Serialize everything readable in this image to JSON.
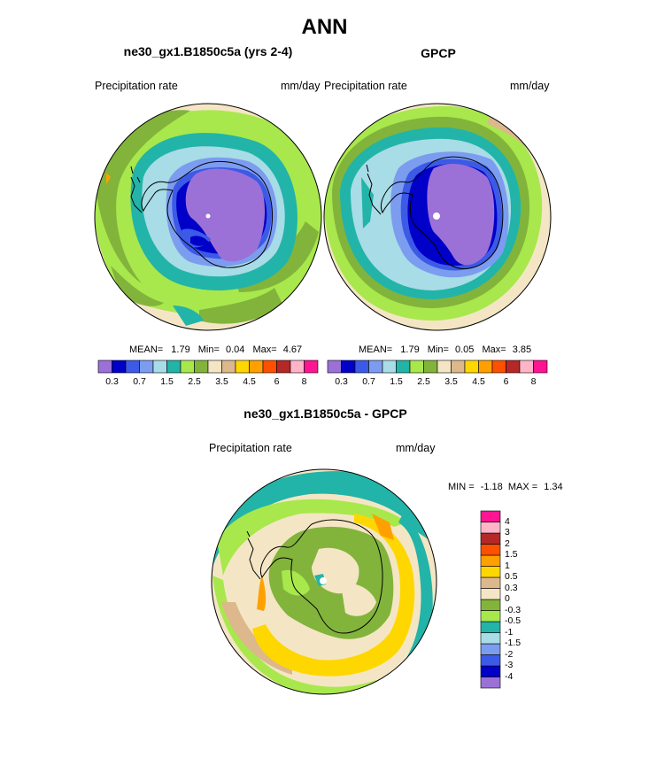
{
  "title": "ANN",
  "panels": [
    {
      "title": "ne30_gx1.B1850c5a (yrs 2-4)",
      "variable": "Precipitation rate",
      "units": "mm/day",
      "stats": {
        "mean_label": "MEAN=",
        "mean": "1.79",
        "min_label": "Min=",
        "min": "0.04",
        "max_label": "Max=",
        "max": "4.67"
      }
    },
    {
      "title": "GPCP",
      "variable": "Precipitation rate",
      "units": "mm/day",
      "stats": {
        "mean_label": "MEAN=",
        "mean": "1.79",
        "min_label": "Min=",
        "min": "0.05",
        "max_label": "Max=",
        "max": "3.85"
      }
    },
    {
      "title": "ne30_gx1.B1850c5a - GPCP",
      "variable": "Precipitation rate",
      "units": "mm/day",
      "stats": {
        "min_label": "MIN =",
        "min": "-1.18",
        "max_label": "MAX =",
        "max": "1.34"
      }
    }
  ],
  "colorbar_precip": {
    "colors": [
      "#9b71d8",
      "#0000c8",
      "#3c5ae6",
      "#7c9cf0",
      "#a8dce6",
      "#22b4a8",
      "#a8e84c",
      "#82b43c",
      "#f4e6c4",
      "#dcb88c",
      "#ffd700",
      "#ffa000",
      "#ff5000",
      "#b42828",
      "#ffb4c8",
      "#ff1493"
    ],
    "labels": [
      "0.3",
      "0.7",
      "1.5",
      "2.5",
      "3.5",
      "4.5",
      "6",
      "8"
    ]
  },
  "colorbar_diff": {
    "colors": [
      "#9b71d8",
      "#0000c8",
      "#3c5ae6",
      "#7c9cf0",
      "#a8dce6",
      "#22b4a8",
      "#a8e84c",
      "#82b43c",
      "#f4e6c4",
      "#dcb88c",
      "#ffd700",
      "#ffa000",
      "#ff5000",
      "#b42828",
      "#ffb4c8",
      "#ff1493"
    ],
    "labels": [
      "-4",
      "-3",
      "-2",
      "-1.5",
      "-1",
      "-0.5",
      "-0.3",
      "0",
      "0.3",
      "0.5",
      "1",
      "1.5",
      "2",
      "3",
      "4"
    ]
  }
}
